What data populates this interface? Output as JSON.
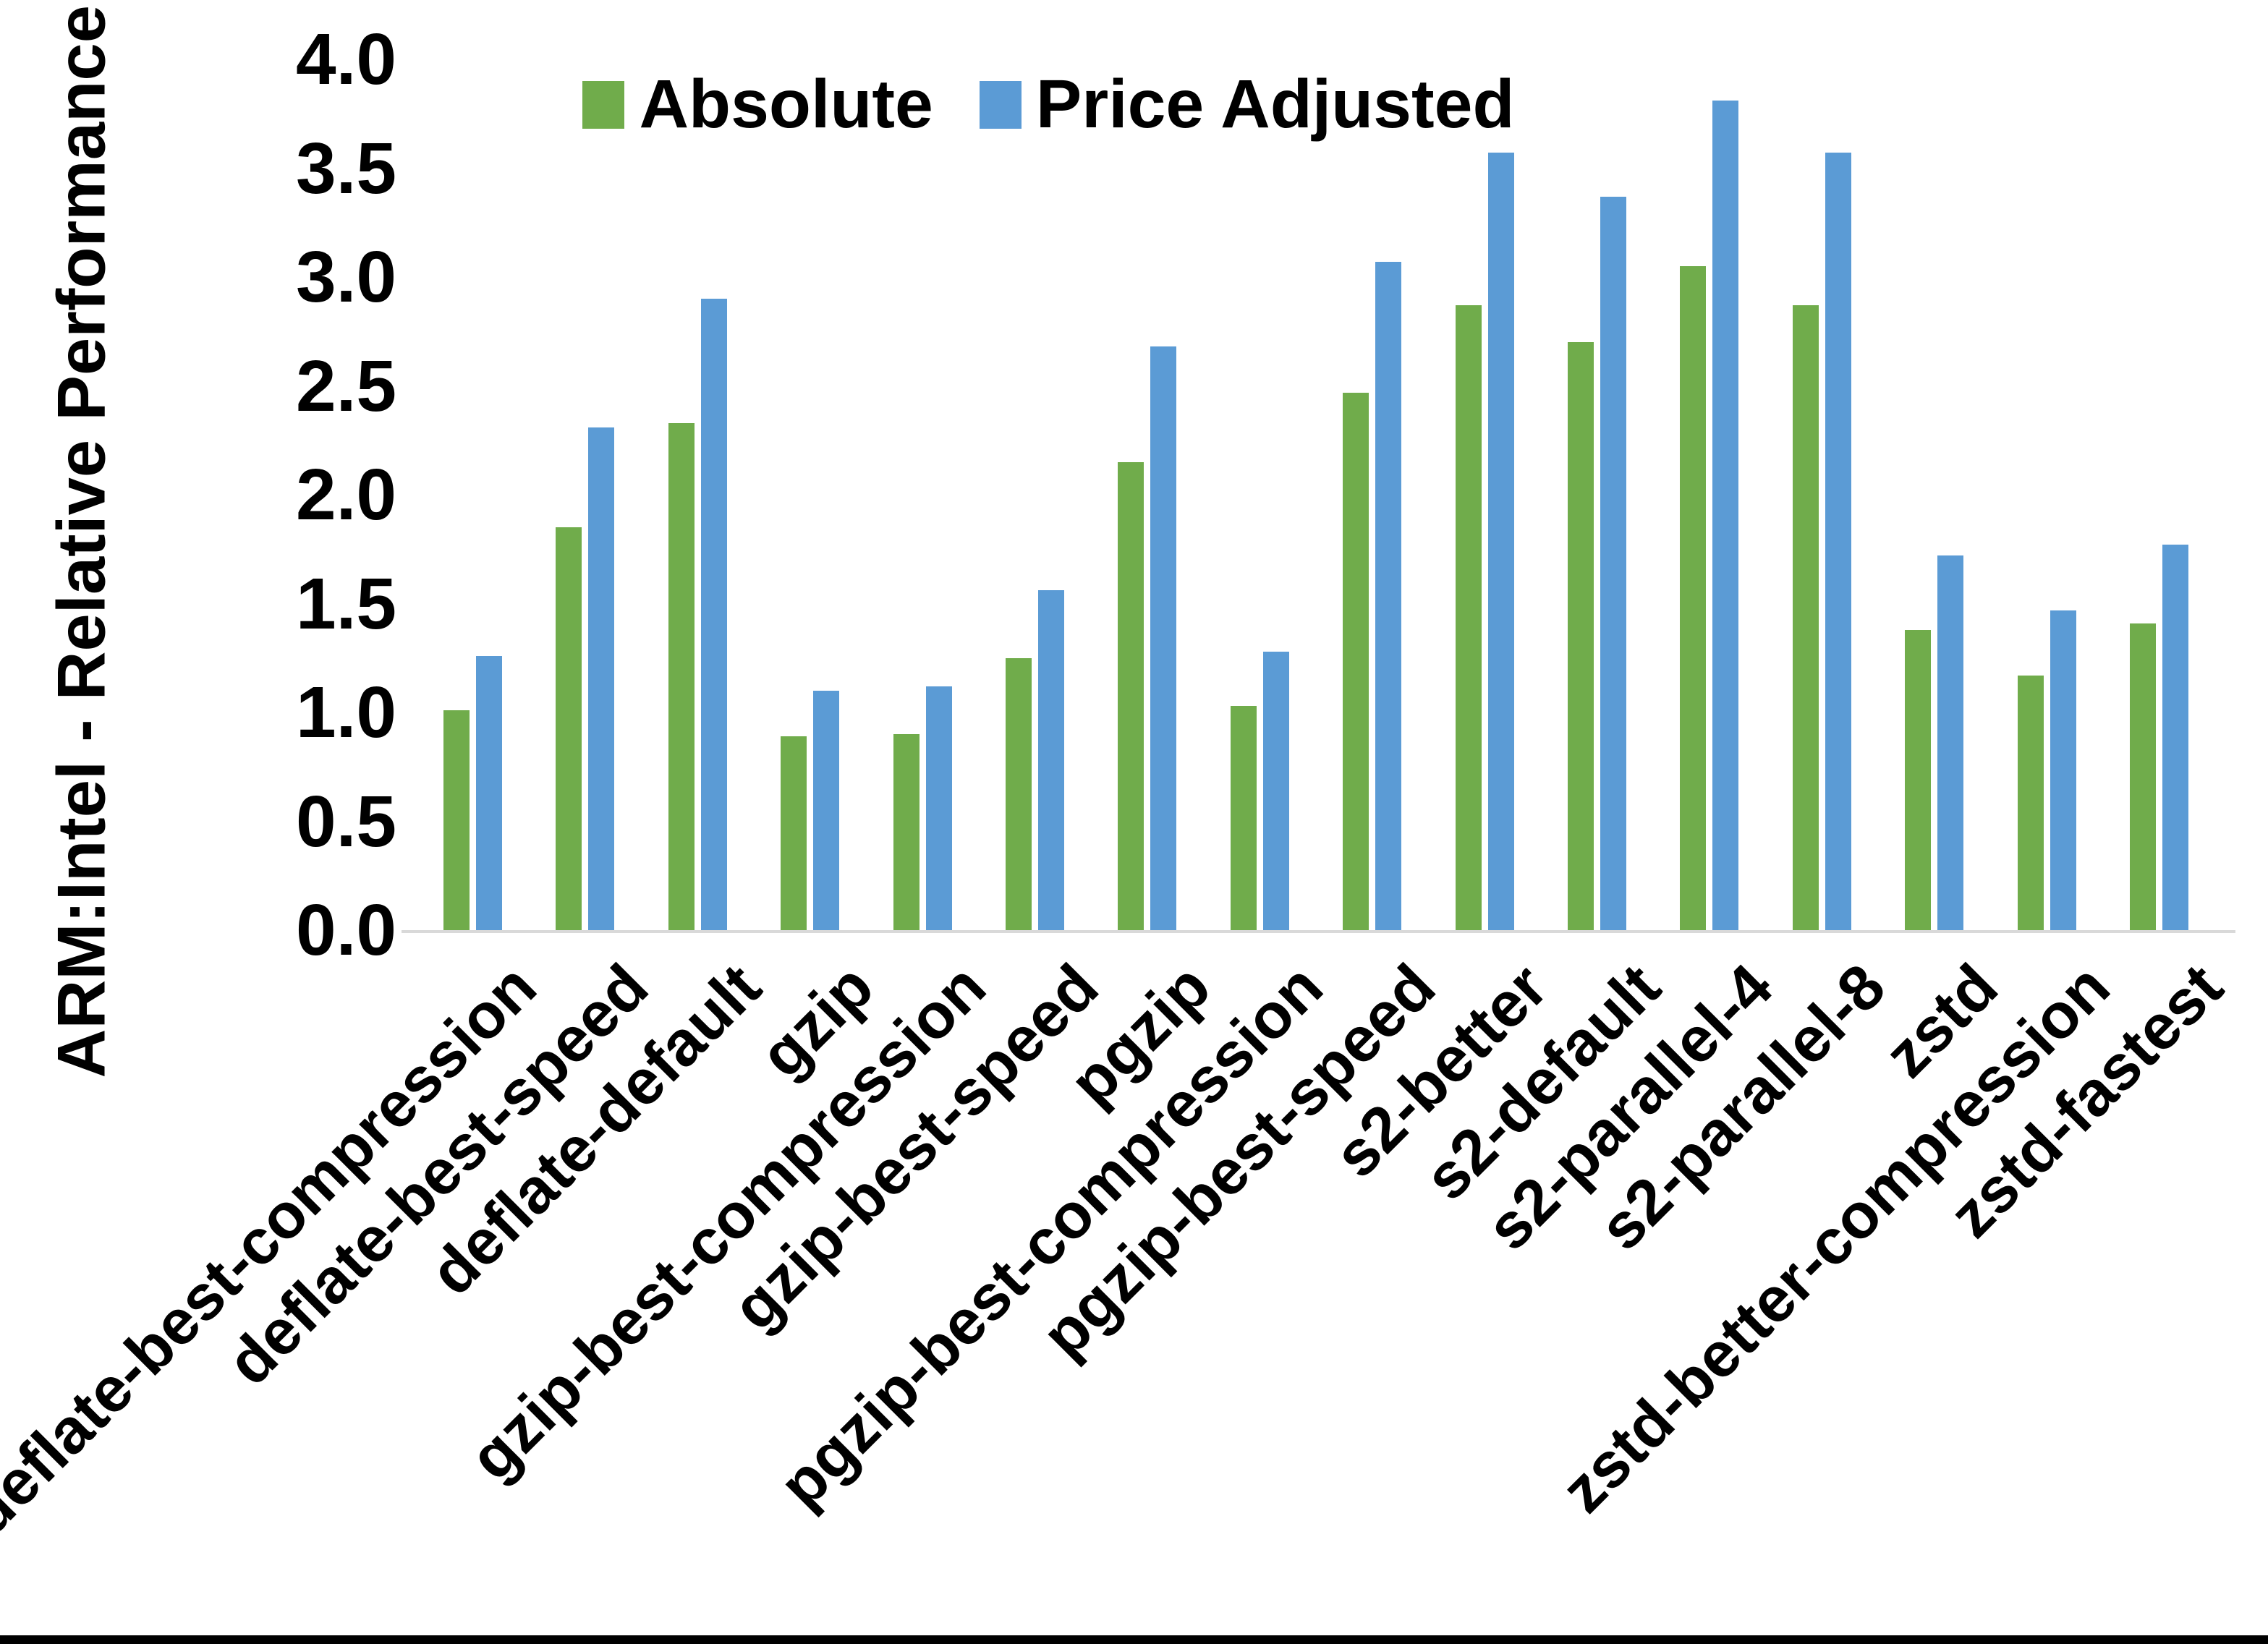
{
  "page": {
    "background": "#ffffff",
    "bottom_border_color": "#000000"
  },
  "chart_data": {
    "type": "bar",
    "title": "",
    "xlabel": "",
    "ylabel": "ARM:Intel - Relative Performance",
    "ylim": [
      0.0,
      4.0
    ],
    "ytick_labels": [
      "0.0",
      "0.5",
      "1.0",
      "1.5",
      "2.0",
      "2.5",
      "3.0",
      "3.5",
      "4.0"
    ],
    "grid": false,
    "legend_position": "top-center",
    "axis_line_color": "#D9D9D9",
    "text_color": "#000000",
    "categories": [
      "deflate-best-compression",
      "deflate-best-speed",
      "deflate-default",
      "gzip",
      "gzip-best-compression",
      "gzip-best-speed",
      "pgzip",
      "pgzip-best-compression",
      "pgzip-best-speed",
      "s2-better",
      "s2-default",
      "s2-parallel-4",
      "s2-parallel-8",
      "zstd",
      "zstd-better-compression",
      "zstd-fastest"
    ],
    "series": [
      {
        "name": "Absolute",
        "color": "#70AC4B",
        "values": [
          1.01,
          1.85,
          2.33,
          0.89,
          0.9,
          1.25,
          2.15,
          1.03,
          2.47,
          2.87,
          2.7,
          3.05,
          2.87,
          1.38,
          1.17,
          1.41
        ]
      },
      {
        "name": "Price Adjusted",
        "color": "#5B9BD5",
        "values": [
          1.26,
          2.31,
          2.9,
          1.1,
          1.12,
          1.56,
          2.68,
          1.28,
          3.07,
          3.57,
          3.37,
          3.81,
          3.57,
          1.72,
          1.47,
          1.77
        ]
      }
    ]
  }
}
